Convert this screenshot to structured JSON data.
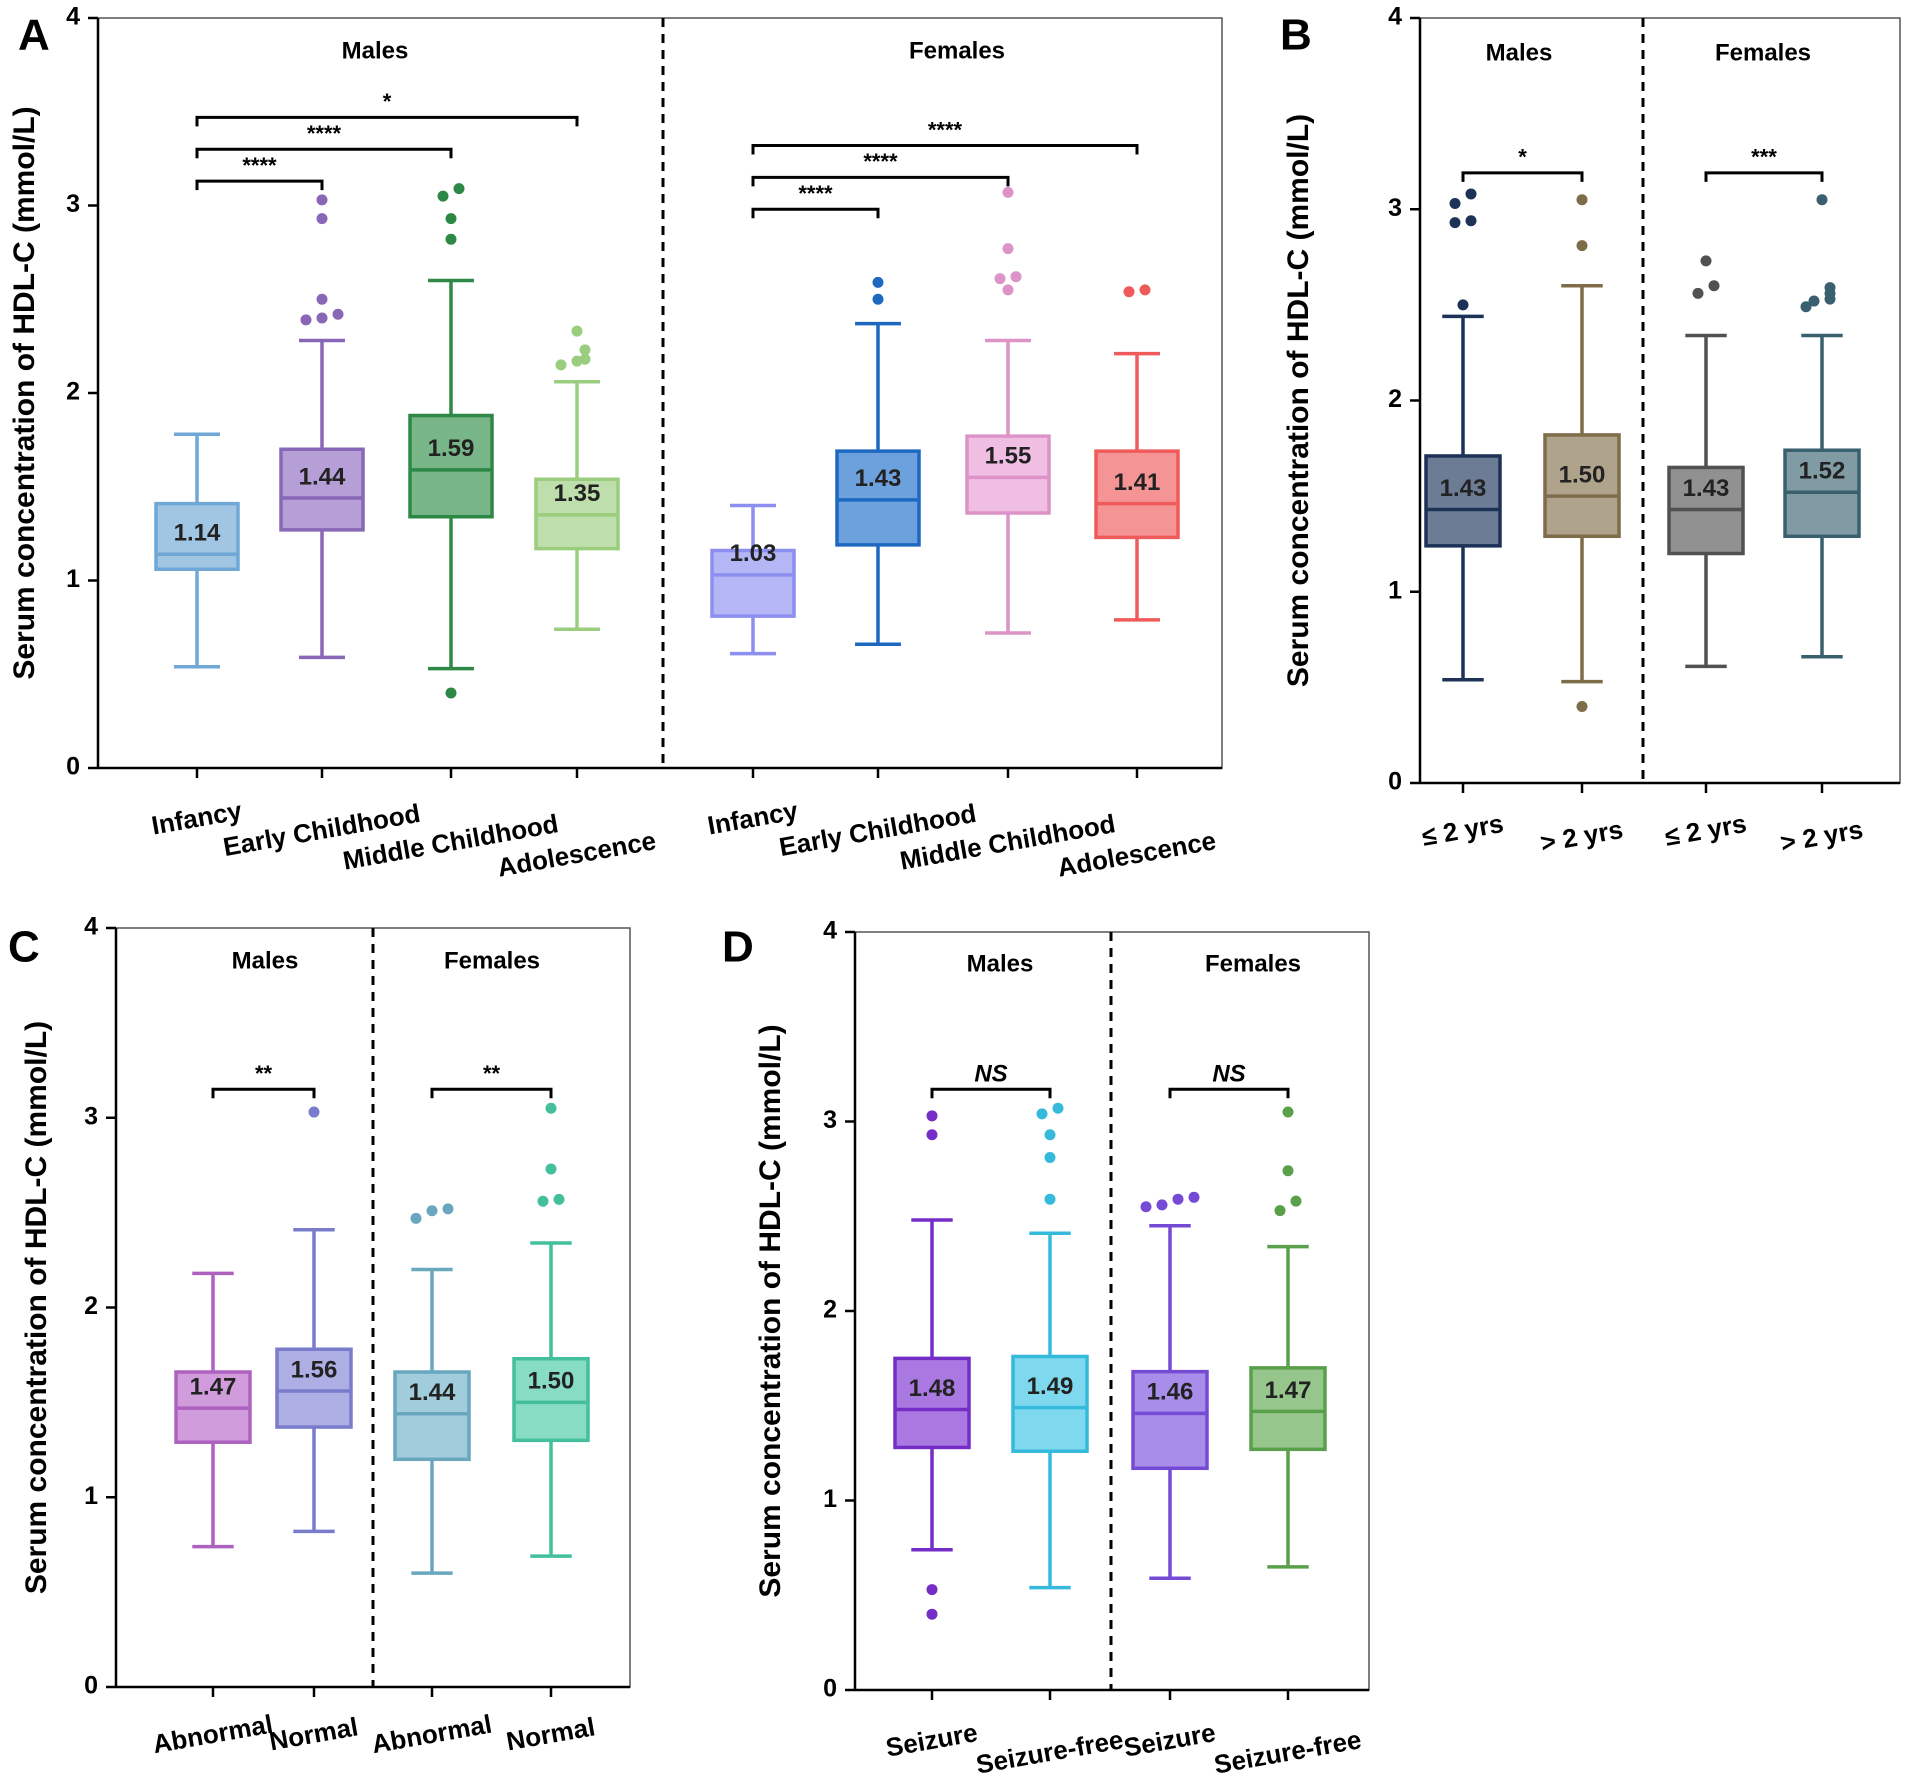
{
  "figure": {
    "y_axis_label": "Serum concentration of HDL-C (mmol/L)"
  },
  "chart_data": [
    {
      "panel": "A",
      "type": "box",
      "ylabel": "Serum concentration of HDL-C (mmol/L)",
      "ylim": [
        0,
        4
      ],
      "yticks": [
        "0",
        "1",
        "2",
        "3",
        "4"
      ],
      "groups": [
        "Males",
        "Females"
      ],
      "categories": [
        "Infancy",
        "Early Childhood",
        "Middle Childhood",
        "Adolescence",
        "Infancy",
        "Early Childhood",
        "Middle Childhood",
        "Adolescence"
      ],
      "boxes": [
        {
          "group": "Males",
          "label": "Infancy",
          "min": 0.54,
          "q1": 1.06,
          "median": 1.14,
          "q3": 1.41,
          "max": 1.78,
          "median_label": "1.14",
          "outliers": [],
          "color": "#6fa7d6"
        },
        {
          "group": "Males",
          "label": "Early Childhood",
          "min": 0.59,
          "q1": 1.27,
          "median": 1.44,
          "q3": 1.7,
          "max": 2.28,
          "median_label": "1.44",
          "outliers": [
            2.39,
            2.4,
            2.42,
            2.5,
            2.93,
            3.03
          ],
          "color": "#8f6cc0"
        },
        {
          "group": "Males",
          "label": "Middle Childhood",
          "min": 0.53,
          "q1": 1.34,
          "median": 1.59,
          "q3": 1.88,
          "max": 2.6,
          "median_label": "1.59",
          "outliers": [
            0.4,
            2.82,
            2.93,
            3.05,
            3.09
          ],
          "color": "#2f8f4a"
        },
        {
          "group": "Males",
          "label": "Adolescence",
          "min": 0.74,
          "q1": 1.17,
          "median": 1.35,
          "q3": 1.54,
          "max": 2.06,
          "median_label": "1.35",
          "outliers": [
            2.15,
            2.17,
            2.18,
            2.23,
            2.33
          ],
          "color": "#9bcd7f"
        },
        {
          "group": "Females",
          "label": "Infancy",
          "min": 0.61,
          "q1": 0.81,
          "median": 1.03,
          "q3": 1.16,
          "max": 1.4,
          "median_label": "1.03",
          "outliers": [],
          "color": "#8c8ef0"
        },
        {
          "group": "Females",
          "label": "Early Childhood",
          "min": 0.66,
          "q1": 1.19,
          "median": 1.43,
          "q3": 1.69,
          "max": 2.37,
          "median_label": "1.43",
          "outliers": [
            2.5,
            2.59
          ],
          "color": "#1f6fcc"
        },
        {
          "group": "Females",
          "label": "Middle Childhood",
          "min": 0.72,
          "q1": 1.36,
          "median": 1.55,
          "q3": 1.77,
          "max": 2.28,
          "median_label": "1.55",
          "outliers": [
            2.55,
            2.61,
            2.62,
            2.77,
            3.07
          ],
          "color": "#e79bd2"
        },
        {
          "group": "Females",
          "label": "Adolescence",
          "min": 0.79,
          "q1": 1.23,
          "median": 1.41,
          "q3": 1.69,
          "max": 2.21,
          "median_label": "1.41",
          "outliers": [
            2.54,
            2.55
          ],
          "color": "#ef5a5a"
        }
      ],
      "comparisons": [
        {
          "from": 0,
          "to": 1,
          "label": "****",
          "y": 3.13
        },
        {
          "from": 0,
          "to": 2,
          "label": "****",
          "y": 3.3
        },
        {
          "from": 0,
          "to": 3,
          "label": "*",
          "y": 3.47
        },
        {
          "from": 4,
          "to": 5,
          "label": "****",
          "y": 2.98
        },
        {
          "from": 4,
          "to": 6,
          "label": "****",
          "y": 3.15
        },
        {
          "from": 4,
          "to": 7,
          "label": "****",
          "y": 3.32
        }
      ]
    },
    {
      "panel": "B",
      "type": "box",
      "ylabel": "Serum concentration of HDL-C (mmol/L)",
      "ylim": [
        0,
        4
      ],
      "yticks": [
        "0",
        "1",
        "2",
        "3",
        "4"
      ],
      "groups": [
        "Males",
        "Females"
      ],
      "categories": [
        "≤ 2 yrs",
        "> 2 yrs",
        "≤ 2 yrs",
        "> 2 yrs"
      ],
      "boxes": [
        {
          "group": "Males",
          "label": "≤ 2 yrs",
          "min": 0.54,
          "q1": 1.24,
          "median": 1.43,
          "q3": 1.71,
          "max": 2.44,
          "median_label": "1.43",
          "outliers": [
            2.5,
            2.93,
            2.94,
            3.03,
            3.08
          ],
          "color": "#1f355c"
        },
        {
          "group": "Males",
          "label": "> 2 yrs",
          "min": 0.53,
          "q1": 1.29,
          "median": 1.5,
          "q3": 1.82,
          "max": 2.6,
          "median_label": "1.50",
          "outliers": [
            0.4,
            2.81,
            3.05
          ],
          "color": "#86724d"
        },
        {
          "group": "Females",
          "label": "≤ 2 yrs",
          "min": 0.61,
          "q1": 1.2,
          "median": 1.43,
          "q3": 1.65,
          "max": 2.34,
          "median_label": "1.43",
          "outliers": [
            2.56,
            2.6,
            2.73
          ],
          "color": "#555555"
        },
        {
          "group": "Females",
          "label": "> 2 yrs",
          "min": 0.66,
          "q1": 1.29,
          "median": 1.52,
          "q3": 1.74,
          "max": 2.34,
          "median_label": "1.52",
          "outliers": [
            2.49,
            2.52,
            2.53,
            2.56,
            2.59,
            3.05
          ],
          "color": "#3d6575"
        }
      ],
      "comparisons": [
        {
          "from": 0,
          "to": 1,
          "label": "*",
          "y": 3.19
        },
        {
          "from": 2,
          "to": 3,
          "label": "***",
          "y": 3.19
        }
      ]
    },
    {
      "panel": "C",
      "type": "box",
      "ylabel": "Serum concentration of HDL-C (mmol/L)",
      "ylim": [
        0,
        4
      ],
      "yticks": [
        "0",
        "1",
        "2",
        "3",
        "4"
      ],
      "groups": [
        "Males",
        "Females"
      ],
      "categories": [
        "Abnormal",
        "Normal",
        "Abnormal",
        "Normal"
      ],
      "boxes": [
        {
          "group": "Males",
          "label": "Abnormal",
          "min": 0.74,
          "q1": 1.29,
          "median": 1.47,
          "q3": 1.66,
          "max": 2.18,
          "median_label": "1.47",
          "outliers": [],
          "color": "#b767c9"
        },
        {
          "group": "Males",
          "label": "Normal",
          "min": 0.82,
          "q1": 1.37,
          "median": 1.56,
          "q3": 1.78,
          "max": 2.41,
          "median_label": "1.56",
          "outliers": [
            3.03
          ],
          "color": "#7f83d6"
        },
        {
          "group": "Females",
          "label": "Abnormal",
          "min": 0.6,
          "q1": 1.2,
          "median": 1.44,
          "q3": 1.66,
          "max": 2.2,
          "median_label": "1.44",
          "outliers": [
            2.47,
            2.51,
            2.52
          ],
          "color": "#6fb0c8"
        },
        {
          "group": "Females",
          "label": "Normal",
          "min": 0.69,
          "q1": 1.3,
          "median": 1.5,
          "q3": 1.73,
          "max": 2.34,
          "median_label": "1.50",
          "outliers": [
            2.56,
            2.57,
            2.73,
            3.05
          ],
          "color": "#46c9a4"
        }
      ],
      "comparisons": [
        {
          "from": 0,
          "to": 1,
          "label": "**",
          "y": 3.15
        },
        {
          "from": 2,
          "to": 3,
          "label": "**",
          "y": 3.15
        }
      ]
    },
    {
      "panel": "D",
      "type": "box",
      "ylabel": "Serum concentration of HDL-C (mmol/L)",
      "ylim": [
        0,
        4
      ],
      "yticks": [
        "0",
        "1",
        "2",
        "3",
        "4"
      ],
      "groups": [
        "Males",
        "Females"
      ],
      "categories": [
        "Seizure",
        "Seizure-free",
        "Seizure",
        "Seizure-free"
      ],
      "boxes": [
        {
          "group": "Males",
          "label": "Seizure",
          "min": 0.74,
          "q1": 1.28,
          "median": 1.48,
          "q3": 1.75,
          "max": 2.48,
          "median_label": "1.48",
          "outliers": [
            0.4,
            0.53,
            2.93,
            3.03
          ],
          "color": "#7a2fd0"
        },
        {
          "group": "Males",
          "label": "Seizure-free",
          "min": 0.54,
          "q1": 1.26,
          "median": 1.49,
          "q3": 1.76,
          "max": 2.41,
          "median_label": "1.49",
          "outliers": [
            2.59,
            2.81,
            2.93,
            3.04,
            3.07
          ],
          "color": "#38c4e6"
        },
        {
          "group": "Females",
          "label": "Seizure",
          "min": 0.59,
          "q1": 1.17,
          "median": 1.46,
          "q3": 1.68,
          "max": 2.45,
          "median_label": "1.46",
          "outliers": [
            2.55,
            2.56,
            2.59,
            2.6
          ],
          "color": "#7b4fe0"
        },
        {
          "group": "Females",
          "label": "Seizure-free",
          "min": 0.65,
          "q1": 1.27,
          "median": 1.47,
          "q3": 1.7,
          "max": 2.34,
          "median_label": "1.47",
          "outliers": [
            2.53,
            2.58,
            2.74,
            3.05
          ],
          "color": "#5fa84f"
        }
      ],
      "comparisons": [
        {
          "from": 0,
          "to": 1,
          "label": "NS",
          "y": 3.17
        },
        {
          "from": 2,
          "to": 3,
          "label": "NS",
          "y": 3.17
        }
      ]
    }
  ]
}
